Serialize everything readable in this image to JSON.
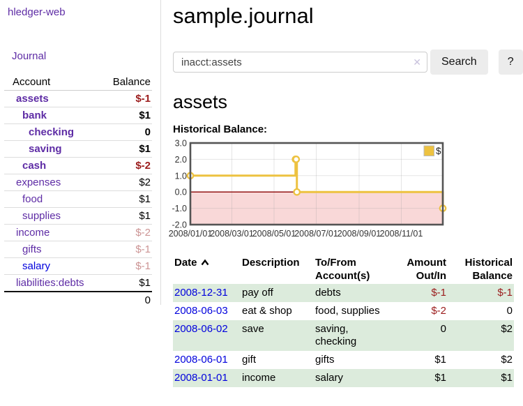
{
  "colors": {
    "purple_link": "#5e2ca5",
    "blue_link": "#0000dd",
    "negative_red": "#9b1c1c",
    "negative_faded_red": "#cc9494",
    "row_shade_green": "#dcebdc",
    "chart_line_yellow": "#edc240",
    "chart_negative_fill": "#f9d8d8",
    "chart_zero_line": "#8b0000"
  },
  "sidebar": {
    "app_title": "hledger-web",
    "nav": {
      "journal_label": "Journal"
    },
    "accounts_table": {
      "col_account": "Account",
      "col_balance": "Balance",
      "rows": [
        {
          "name": "assets",
          "balance": "$-1",
          "level": 1,
          "bold": true,
          "balance_style": "negative",
          "link_style": "purple"
        },
        {
          "name": "bank",
          "balance": "$1",
          "level": 2,
          "bold": true,
          "balance_style": "normal",
          "link_style": "purple"
        },
        {
          "name": "checking",
          "balance": "0",
          "level": 3,
          "bold": true,
          "balance_style": "normal",
          "link_style": "purple"
        },
        {
          "name": "saving",
          "balance": "$1",
          "level": 3,
          "bold": true,
          "balance_style": "normal",
          "link_style": "purple"
        },
        {
          "name": "cash",
          "balance": "$-2",
          "level": 2,
          "bold": true,
          "balance_style": "negative",
          "link_style": "purple"
        },
        {
          "name": "expenses",
          "balance": "$2",
          "level": 1,
          "bold": false,
          "balance_style": "normal",
          "link_style": "purple"
        },
        {
          "name": "food",
          "balance": "$1",
          "level": 2,
          "bold": false,
          "balance_style": "normal",
          "link_style": "purple"
        },
        {
          "name": "supplies",
          "balance": "$1",
          "level": 2,
          "bold": false,
          "balance_style": "normal",
          "link_style": "purple"
        },
        {
          "name": "income",
          "balance": "$-2",
          "level": 1,
          "bold": false,
          "balance_style": "negative-faded",
          "link_style": "purple"
        },
        {
          "name": "gifts",
          "balance": "$-1",
          "level": 2,
          "bold": false,
          "balance_style": "negative-faded",
          "link_style": "purple"
        },
        {
          "name": "salary",
          "balance": "$-1",
          "level": 2,
          "bold": false,
          "balance_style": "negative-faded",
          "link_style": "blue"
        },
        {
          "name": "liabilities:debts",
          "balance": "$1",
          "level": 1,
          "bold": false,
          "balance_style": "normal",
          "link_style": "purple"
        }
      ],
      "total": "0"
    }
  },
  "main": {
    "page_title": "sample.journal",
    "search": {
      "value": "inacct:assets",
      "clear_icon": "✕",
      "search_button_label": "Search",
      "help_button_label": "?"
    },
    "account_heading": "assets",
    "chart_heading": "Historical Balance:"
  },
  "chart_data": {
    "type": "line",
    "step": true,
    "grid": true,
    "title": "",
    "xlabel": "",
    "ylabel": "",
    "ylim": [
      -2.0,
      3.0
    ],
    "yticks": [
      "3.0",
      "2.0",
      "1.0",
      "0.0",
      "-1.0",
      "-2.0"
    ],
    "xticks": [
      "2008/01/01",
      "2008/03/01",
      "2008/05/01",
      "2008/07/01",
      "2008/09/01",
      "2008/11/01"
    ],
    "x_range": [
      "2008-01-01",
      "2008-12-31"
    ],
    "legend": [
      {
        "label": "$",
        "color": "#edc240"
      }
    ],
    "legend_position": "top-right",
    "series": [
      {
        "name": "$",
        "color": "#edc240",
        "points": [
          [
            "2008-01-01",
            1
          ],
          [
            "2008-06-01",
            2
          ],
          [
            "2008-06-02",
            2
          ],
          [
            "2008-06-03",
            0
          ],
          [
            "2008-12-31",
            -1
          ]
        ]
      }
    ],
    "negative_region": {
      "from": -2.0,
      "to": 0.0,
      "color": "#f9d8d8"
    },
    "zero_line_color": "#8b0000"
  },
  "register": {
    "headers": {
      "date": "Date",
      "description": "Description",
      "accounts": "To/From Account(s)",
      "amount": "Amount Out/In",
      "balance": "Historical Balance"
    },
    "sort": {
      "column": "date",
      "direction": "ascending"
    },
    "rows": [
      {
        "date": "2008-12-31",
        "description": "pay off",
        "accounts": "debts",
        "amount": "$-1",
        "balance": "$-1",
        "amount_negative": true,
        "balance_negative": true,
        "shaded": true
      },
      {
        "date": "2008-06-03",
        "description": "eat & shop",
        "accounts": "food, supplies",
        "amount": "$-2",
        "balance": "0",
        "amount_negative": true,
        "balance_negative": false,
        "shaded": false
      },
      {
        "date": "2008-06-02",
        "description": "save",
        "accounts": "saving, checking",
        "amount": "0",
        "balance": "$2",
        "amount_negative": false,
        "balance_negative": false,
        "shaded": true
      },
      {
        "date": "2008-06-01",
        "description": "gift",
        "accounts": "gifts",
        "amount": "$1",
        "balance": "$2",
        "amount_negative": false,
        "balance_negative": false,
        "shaded": false
      },
      {
        "date": "2008-01-01",
        "description": "income",
        "accounts": "salary",
        "amount": "$1",
        "balance": "$1",
        "amount_negative": false,
        "balance_negative": false,
        "shaded": true
      }
    ]
  }
}
